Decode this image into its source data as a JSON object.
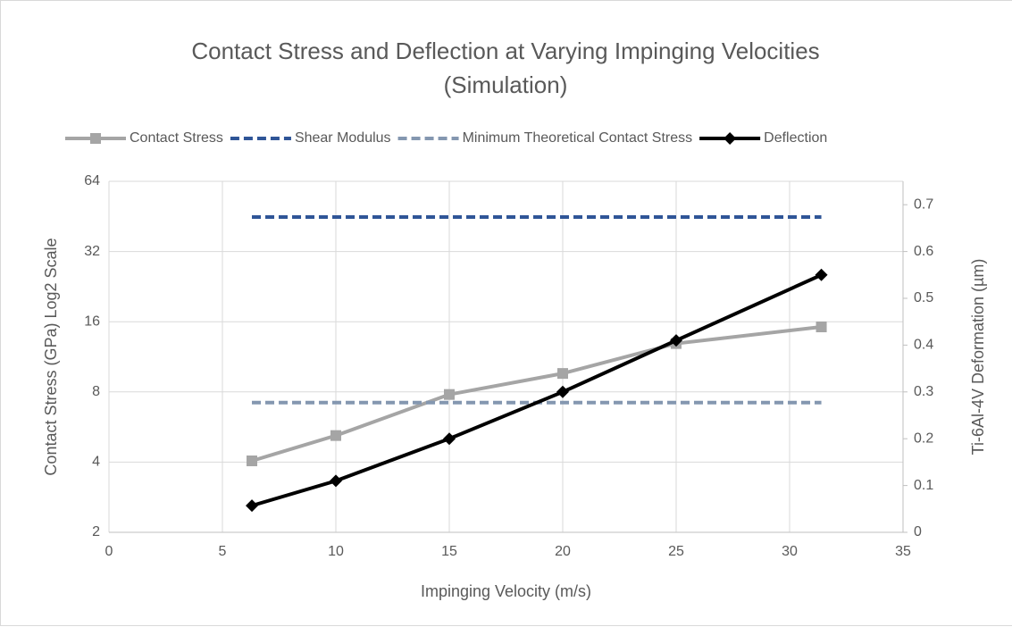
{
  "chart_data": {
    "type": "line",
    "title": "Contact Stress and Deflection at Varying Impinging Velocities (Simulation)",
    "x_label": "Impinging Velocity (m/s)",
    "y_label": "Contact Stress (GPa) Log2 Scale",
    "y2_label": "Ti-6Al-4V Deformation (µm)",
    "xlim": [
      0,
      35
    ],
    "xticks": [
      0,
      5,
      10,
      15,
      20,
      25,
      30,
      35
    ],
    "ylim": [
      2,
      64
    ],
    "yticks": [
      2,
      4,
      8,
      16,
      32,
      64
    ],
    "yscale": "log2",
    "y2lim": [
      0,
      0.75
    ],
    "y2ticks": [
      0,
      0.1,
      0.2,
      0.3,
      0.4,
      0.5,
      0.6,
      0.7
    ],
    "grid": true,
    "legend": "top",
    "series": [
      {
        "name": "Contact Stress",
        "color": "#a5a5a5",
        "marker": "square",
        "dashed": false,
        "x": [
          6.3,
          10,
          15,
          20,
          25,
          31.4
        ],
        "values": [
          4.05,
          5.2,
          7.8,
          9.6,
          12.9,
          15.2
        ]
      },
      {
        "name": "Shear Modulus",
        "color": "#2f5597",
        "marker": null,
        "dashed": true,
        "x": [
          6.3,
          31.4
        ],
        "values": [
          45,
          45
        ]
      },
      {
        "name": "Minimum Theoretical Contact Stress",
        "color": "#8497b0",
        "marker": null,
        "dashed": true,
        "x": [
          6.3,
          31.4
        ],
        "values": [
          7.2,
          7.2
        ]
      },
      {
        "name": "Deflection",
        "color": "#000000",
        "marker": "diamond",
        "dashed": false,
        "axis": "y2",
        "x": [
          6.3,
          10,
          15,
          20,
          25,
          31.4
        ],
        "values": [
          0.057,
          0.11,
          0.2,
          0.3,
          0.41,
          0.55
        ]
      }
    ]
  }
}
